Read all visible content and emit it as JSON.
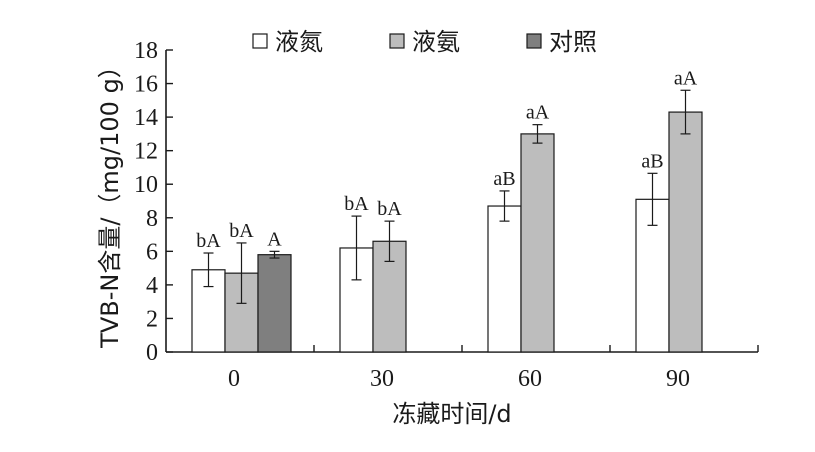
{
  "chart_data": {
    "type": "bar",
    "title": "",
    "xlabel": "冻藏时间/d",
    "ylabel": "TVB-N含量/（mg/100 g）",
    "ylim": [
      0,
      18
    ],
    "yticks": [
      "0",
      "2",
      "4",
      "6",
      "8",
      "10",
      "12",
      "14",
      "16",
      "18"
    ],
    "categories": [
      "0",
      "30",
      "60",
      "90"
    ],
    "grid": false,
    "legend_position": "top",
    "series": [
      {
        "name": "液氮",
        "color": "#ffffff",
        "values": [
          4.9,
          6.2,
          8.7,
          9.1
        ],
        "errors": [
          1.0,
          1.9,
          0.9,
          1.55
        ],
        "labels": [
          "bA",
          "bA",
          "aB",
          "aB"
        ]
      },
      {
        "name": "液氨",
        "color": "#bdbdbd",
        "values": [
          4.7,
          6.6,
          13.0,
          14.3
        ],
        "errors": [
          1.8,
          1.2,
          0.55,
          1.3
        ],
        "labels": [
          "bA",
          "bA",
          "aA",
          "aA"
        ]
      },
      {
        "name": "对照",
        "color": "#7f7f7f",
        "values": [
          5.8,
          null,
          null,
          null
        ],
        "errors": [
          0.2,
          null,
          null,
          null
        ],
        "labels": [
          "A",
          "",
          "",
          ""
        ]
      }
    ]
  }
}
